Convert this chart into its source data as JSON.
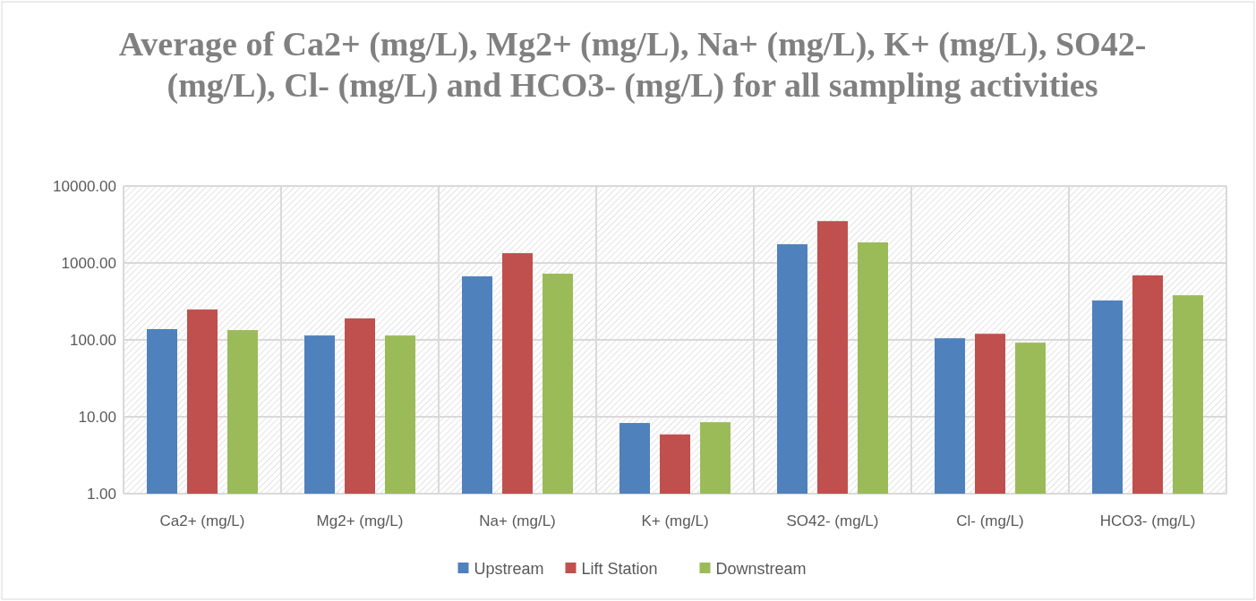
{
  "chart_data": {
    "type": "bar",
    "title": "Average of Ca2+ (mg/L), Mg2+ (mg/L), Na+ (mg/L), K+ (mg/L), SO42- (mg/L), Cl- (mg/L) and HCO3- (mg/L) for all sampling activities",
    "categories": [
      "Ca2+ (mg/L)",
      "Mg2+ (mg/L)",
      "Na+ (mg/L)",
      "K+ (mg/L)",
      "SO42- (mg/L)",
      "Cl- (mg/L)",
      "HCO3- (mg/L)"
    ],
    "series": [
      {
        "name": "Upstream",
        "color": "#4f81bd",
        "values": [
          138,
          114,
          670,
          8.3,
          1750,
          105,
          325
        ]
      },
      {
        "name": "Lift Station",
        "color": "#c0504d",
        "values": [
          248,
          190,
          1340,
          5.9,
          3500,
          120,
          690
        ]
      },
      {
        "name": "Downstream",
        "color": "#9bbb59",
        "values": [
          134,
          114,
          725,
          8.5,
          1850,
          92,
          380
        ]
      }
    ],
    "log": true,
    "ylim": [
      1,
      10000
    ],
    "yticks": [
      {
        "value": 1,
        "label": "1.00"
      },
      {
        "value": 10,
        "label": "10.00"
      },
      {
        "value": 100,
        "label": "100.00"
      },
      {
        "value": 1000,
        "label": "1000.00"
      },
      {
        "value": 10000,
        "label": "10000.00"
      }
    ],
    "grid": true,
    "legend": "bottom"
  }
}
